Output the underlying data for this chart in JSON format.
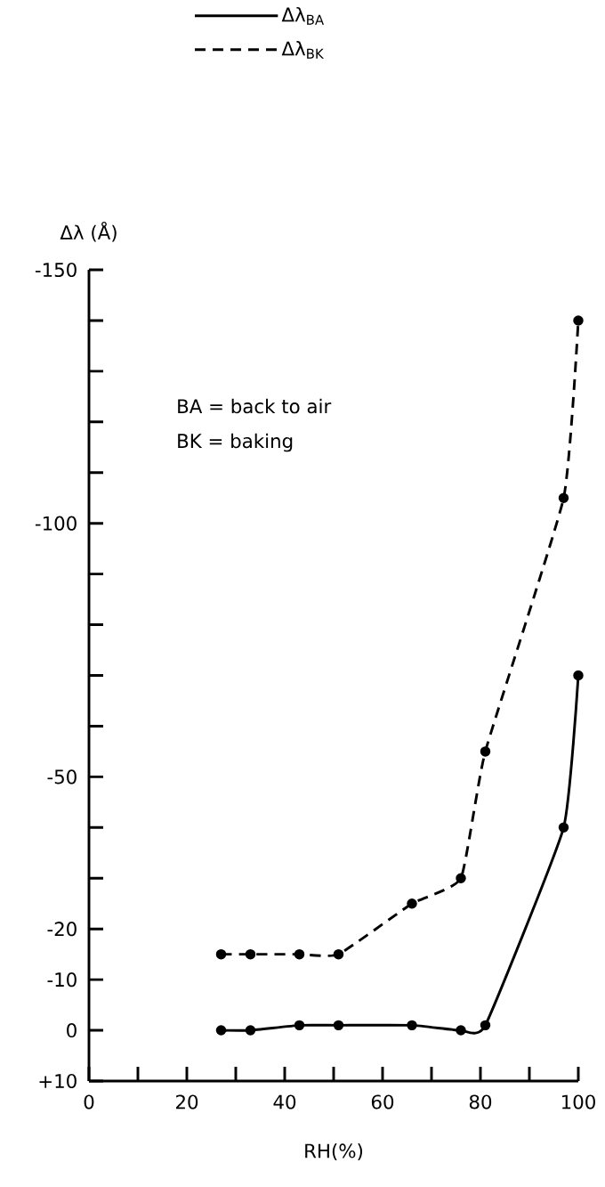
{
  "chart_data": {
    "type": "line",
    "xlabel": "RH(%)",
    "ylabel": "Δλ (Å)",
    "x": [
      27,
      33,
      43,
      51,
      66,
      76,
      81,
      97,
      100
    ],
    "series": [
      {
        "name": "Δλ$_{BA}$",
        "color": "#000000",
        "line_style": "solid",
        "values": [
          0,
          0,
          -1,
          -1,
          -1,
          0,
          -1,
          -40,
          -70
        ]
      },
      {
        "name": "Δλ$_{BK}$",
        "color": "#000000",
        "line_style": "dashed",
        "values": [
          -15,
          -15,
          -15,
          -15,
          -25,
          -30,
          -55,
          -105,
          -140
        ]
      }
    ],
    "xlim": [
      0,
      100
    ],
    "ylim": [
      10,
      -150
    ],
    "xticks": [
      0,
      {
        "value": 10,
        "label": null
      },
      20,
      {
        "value": 30,
        "label": null
      },
      40,
      {
        "value": 50,
        "label": null
      },
      60,
      {
        "value": 70,
        "label": null
      },
      80,
      {
        "value": 90,
        "label": null
      },
      100
    ],
    "yticks": [
      -150,
      {
        "value": -140,
        "label": null
      },
      {
        "value": -130,
        "label": null
      },
      {
        "value": -120,
        "label": null
      },
      {
        "value": -110,
        "label": null
      },
      -100,
      {
        "value": -90,
        "label": null
      },
      {
        "value": -80,
        "label": null
      },
      {
        "value": -70,
        "label": null
      },
      {
        "value": -60,
        "label": null
      },
      -50,
      {
        "value": -40,
        "label": null
      },
      {
        "value": -30,
        "label": null
      },
      -20,
      -10,
      0,
      {
        "value": 10,
        "label": "+10"
      }
    ],
    "annotations": [
      "BA = back to air",
      "BK = baking"
    ],
    "legend": "top",
    "marker": "circle"
  }
}
